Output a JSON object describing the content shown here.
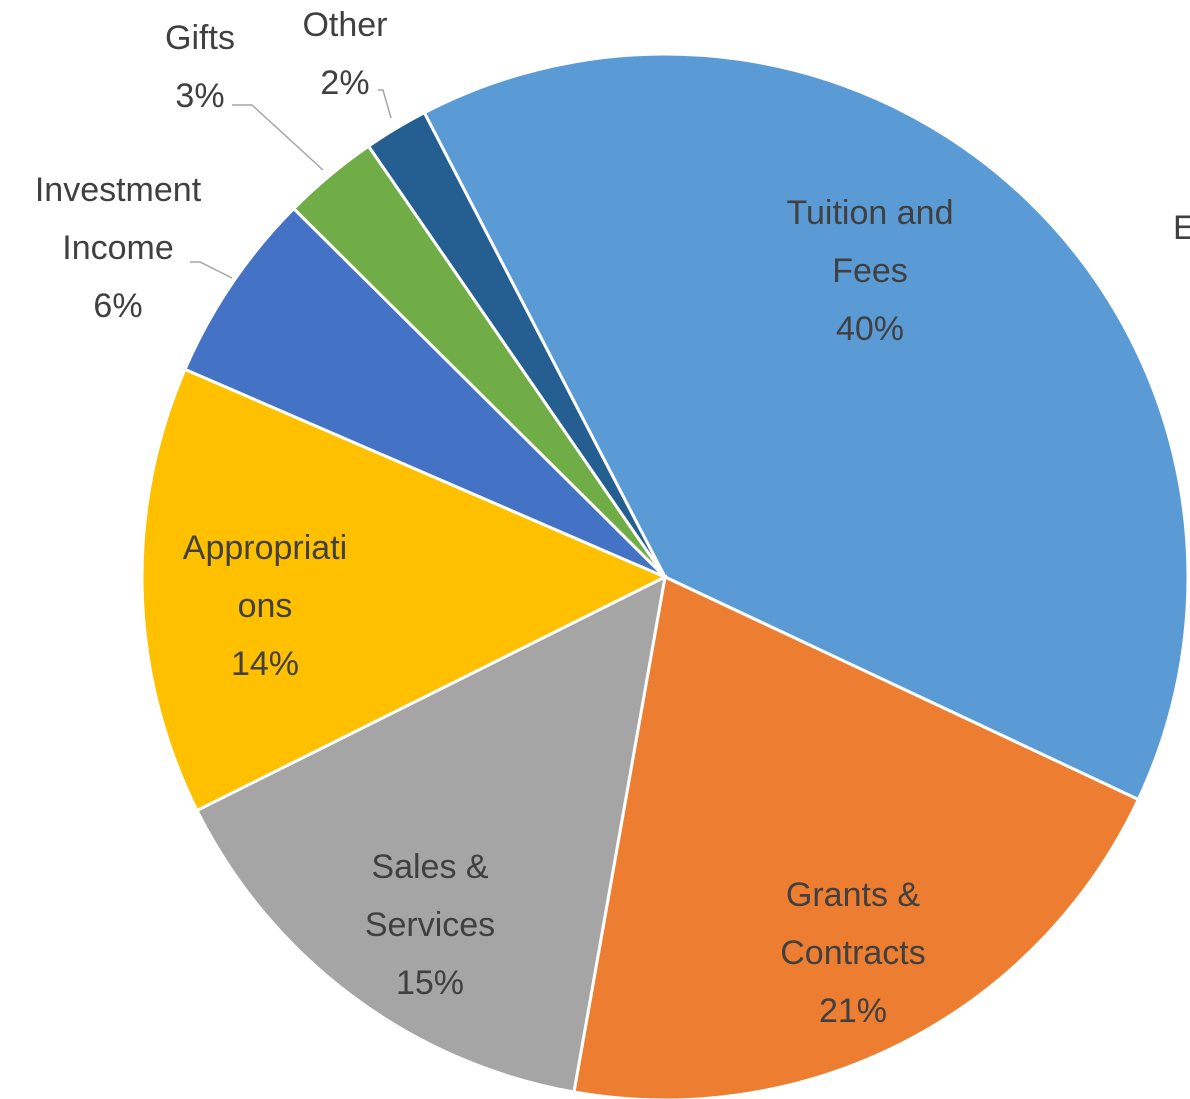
{
  "chart_data": {
    "type": "pie",
    "categories": [
      "Tuition and Fees",
      "Grants & Contracts",
      "Sales & Services",
      "Appropriations",
      "Investment Income",
      "Gifts",
      "Other"
    ],
    "values": [
      40,
      21,
      15,
      14,
      6,
      3,
      2
    ],
    "value_labels": [
      "40%",
      "21%",
      "15%",
      "14%",
      "6%",
      "3%",
      "2%"
    ],
    "colors": [
      "#5b9bd5",
      "#ed7d31",
      "#a5a5a5",
      "#ffc000",
      "#4472c4",
      "#70ad47",
      "#255e91"
    ],
    "annotations": [
      "E"
    ]
  }
}
